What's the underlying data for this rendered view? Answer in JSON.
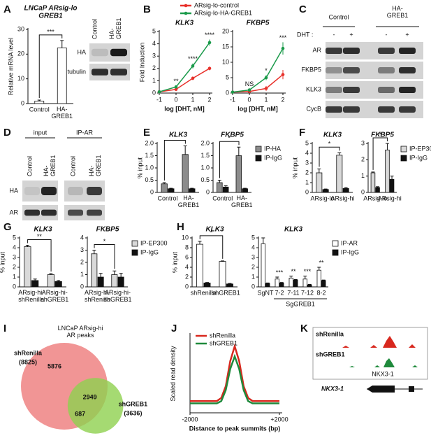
{
  "panel_letters": [
    "A",
    "B",
    "C",
    "D",
    "E",
    "F",
    "G",
    "H",
    "I",
    "J",
    "K"
  ],
  "chart_data": [
    {
      "type": "bar",
      "title": "LNCaP ARsig-lo",
      "subtitle": "GREB1",
      "ylabel": "Relative mRNA level",
      "categories": [
        "Control",
        "HA-\nGREB1"
      ],
      "values": [
        1,
        22.5
      ],
      "errors": [
        0.4,
        3
      ],
      "color": "#ffffff",
      "ylim": [
        0,
        30
      ],
      "yticks": [
        0,
        10,
        20,
        30
      ],
      "annotation": "***"
    },
    {
      "type": "line",
      "title": "KLK3",
      "xlabel": "log [DHT, nM]",
      "ylabel": "Fold Induction",
      "legend": "top",
      "x": [
        -1,
        0,
        1,
        2
      ],
      "xlim": [
        -1,
        2
      ],
      "xticks": [
        -1,
        0,
        1,
        2
      ],
      "ylim": [
        0,
        5
      ],
      "yticks": [
        0,
        1,
        2,
        3,
        4,
        5
      ],
      "series": [
        {
          "name": "ARsig-lo-control",
          "color": "#e8302a",
          "values": [
            0.1,
            0.3,
            1.2,
            2.0
          ],
          "errors": [
            0.05,
            0.1,
            0.15,
            0.15
          ]
        },
        {
          "name": "ARsig-lo-HA-GREB1",
          "color": "#1a9a4a",
          "values": [
            0.1,
            0.5,
            2.2,
            4.1
          ],
          "errors": [
            0.05,
            0.1,
            0.2,
            0.25
          ]
        }
      ],
      "annotations": [
        null,
        "**",
        "****",
        "****"
      ]
    },
    {
      "type": "line",
      "title": "FKBP5",
      "xlabel": "log [DHT, nM]",
      "x": [
        -1,
        0,
        1,
        2
      ],
      "xlim": [
        -1,
        2
      ],
      "xticks": [
        -1,
        0,
        1,
        2
      ],
      "ylim": [
        0,
        20
      ],
      "yticks": [
        0,
        5,
        10,
        15,
        20
      ],
      "series": [
        {
          "color": "#e8302a",
          "values": [
            0.3,
            0.5,
            1.5,
            6
          ],
          "errors": [
            0.2,
            0.3,
            0.8,
            1.5
          ]
        },
        {
          "color": "#1a9a4a",
          "values": [
            0.3,
            1,
            5,
            14.5
          ],
          "errors": [
            0.2,
            0.4,
            0.8,
            2
          ]
        }
      ],
      "annotations": [
        null,
        "NS",
        "*",
        "***"
      ]
    },
    {
      "type": "bar",
      "title": "KLK3",
      "ylabel": "% input",
      "categories": [
        "Control",
        "HA-\nGREB1"
      ],
      "ylim": [
        0,
        2
      ],
      "yticks": [
        0,
        0.5,
        {
          "value": 1,
          "label": "1.0"
        },
        1.5,
        {
          "value": 2,
          "label": "2.0"
        }
      ],
      "series": [
        {
          "color": "#8c8c8c",
          "values": [
            0.35,
            1.55
          ],
          "errors": [
            0.05,
            0.35
          ]
        },
        {
          "color": "#111111",
          "values": [
            0.15,
            0.15
          ],
          "errors": [
            0.02,
            0.02
          ]
        }
      ],
      "annotation": "*"
    },
    {
      "type": "bar",
      "title": "FKBP5",
      "legend": "right",
      "categories": [
        "Control",
        "HA-\nGREB1"
      ],
      "ylim": [
        0,
        2
      ],
      "yticks": [
        0,
        0.5,
        {
          "value": 1,
          "label": "1.0"
        },
        1.5,
        {
          "value": 2,
          "label": "2.0"
        }
      ],
      "series": [
        {
          "name": "IP-HA",
          "color": "#8c8c8c",
          "values": [
            0.4,
            1.5
          ],
          "errors": [
            0.1,
            0.35
          ]
        },
        {
          "name": "IP-IgG",
          "color": "#111111",
          "values": [
            0.22,
            0.15
          ],
          "errors": [
            0.05,
            0.02
          ]
        }
      ],
      "annotation": "*"
    },
    {
      "type": "bar",
      "title": "KLK3",
      "ylabel": "% input",
      "categories": [
        "ARsig-lo",
        "ARsig-hi"
      ],
      "ylim": [
        0,
        5
      ],
      "yticks": [
        0,
        1,
        2,
        3,
        4,
        5
      ],
      "series": [
        {
          "color": "#d9d9d9",
          "values": [
            2.0,
            3.8
          ],
          "errors": [
            0.4,
            0.25
          ]
        },
        {
          "color": "#111111",
          "values": [
            0.3,
            0.4
          ],
          "errors": [
            0.05,
            0.1
          ]
        }
      ],
      "annotation": "*"
    },
    {
      "type": "bar",
      "title": "FKBP5",
      "legend": "right",
      "categories": [
        "ARsig-lo",
        "ARsig-hi"
      ],
      "ylim": [
        0,
        3
      ],
      "yticks": [
        0,
        1,
        2,
        3
      ],
      "series": [
        {
          "name": "IP-EP300",
          "color": "#d9d9d9",
          "values": [
            1.2,
            2.6
          ],
          "errors": [
            0.05,
            0.4
          ]
        },
        {
          "name": "IP-IgG",
          "color": "#111111",
          "values": [
            0.3,
            0.8
          ],
          "errors": [
            0.05,
            0.2
          ]
        }
      ],
      "annotation": "*"
    },
    {
      "type": "bar",
      "title": "KLK3",
      "ylabel": "% input",
      "categories": [
        "ARsig-hi-\nshRenilla",
        "ARsig-hi-\nshGREB1"
      ],
      "ylim": [
        0,
        5
      ],
      "yticks": [
        0,
        1,
        2,
        3,
        4,
        5
      ],
      "series": [
        {
          "color": "#d9d9d9",
          "values": [
            4.1,
            1.25
          ],
          "errors": [
            0.15,
            0.1
          ]
        },
        {
          "color": "#111111",
          "values": [
            0.65,
            0.55
          ],
          "errors": [
            0.15,
            0.1
          ]
        }
      ],
      "annotation": "**"
    },
    {
      "type": "bar",
      "title": "FKBP5",
      "legend": "right",
      "categories": [
        "ARsig-hi-\nshRenilla",
        "ARsig-hi-\nshGREB1"
      ],
      "ylim": [
        0,
        4
      ],
      "yticks": [
        0,
        1,
        2,
        3,
        4
      ],
      "series": [
        {
          "name": "IP-EP300",
          "color": "#d9d9d9",
          "values": [
            2.7,
            1.0
          ],
          "errors": [
            0.3,
            0.3
          ]
        },
        {
          "name": "IP-IgG",
          "color": "#111111",
          "values": [
            0.8,
            0.8
          ],
          "errors": [
            0.3,
            0.3
          ]
        }
      ],
      "annotation": "*"
    },
    {
      "type": "bar",
      "title": "KLK3",
      "ylabel": "% input",
      "categories": [
        "shRenilla",
        "shGREB1"
      ],
      "ylim": [
        0,
        10
      ],
      "yticks": [
        0,
        2,
        4,
        6,
        8,
        10
      ],
      "series": [
        {
          "color": "#ffffff",
          "values": [
            8.7,
            5.2
          ],
          "errors": [
            0.6,
            0.1
          ]
        },
        {
          "color": "#111111",
          "values": [
            0.8,
            0.6
          ],
          "errors": [
            0.1,
            0.1
          ]
        }
      ],
      "annotation": "*"
    },
    {
      "type": "bar",
      "title": "KLK3",
      "legend": "right",
      "categories": [
        "SgNT",
        "7-2",
        "7-11",
        "7-12",
        "8-2"
      ],
      "group_label": "SgGREB1",
      "ylim": [
        0,
        5
      ],
      "yticks": [
        0,
        1,
        2,
        3,
        4,
        5
      ],
      "series": [
        {
          "name": "IP-AR",
          "color": "#ffffff",
          "values": [
            4.4,
            0.8,
            0.9,
            0.8,
            1.7
          ],
          "errors": [
            0.6,
            0.2,
            0.2,
            0.3,
            0.3
          ]
        },
        {
          "name": "IP-IgG",
          "color": "#111111",
          "values": [
            0.35,
            0.4,
            0.7,
            0.2,
            0.65
          ],
          "errors": [
            0.05,
            0.05,
            0.05,
            0.05,
            0.05
          ]
        }
      ],
      "annotations": [
        null,
        "***",
        "**",
        "***",
        "**"
      ]
    },
    {
      "type": "venn",
      "title": "LNCaP ARsig-hi\nAR peaks",
      "sets": [
        "shRenilla",
        "shGREB1"
      ],
      "colors": [
        "#f08a8a",
        "#8fd14f"
      ],
      "totals": [
        8825,
        3636
      ],
      "total_labels": [
        "(8825)",
        "(3636)"
      ],
      "only": [
        5876,
        687
      ],
      "both": 2949
    },
    {
      "type": "line",
      "xlabel": "Distance to peak summits (bp)",
      "ylabel": "Scaled read density",
      "legend": "upper left",
      "x": [
        -2000,
        -1800,
        -1600,
        -1400,
        -1200,
        -1000,
        -800,
        -600,
        -400,
        -200,
        0,
        200,
        400,
        600,
        800,
        1000,
        1200,
        1400,
        1600,
        1800,
        2000
      ],
      "xlim": [
        -2000,
        2000
      ],
      "xticks": [
        -2000,
        {
          "value": 2000,
          "label": "+2000"
        }
      ],
      "ylim": [
        0,
        1
      ],
      "series": [
        {
          "name": "shRenilla",
          "color": "#d8281e",
          "values": [
            0.15,
            0.15,
            0.15,
            0.15,
            0.15,
            0.15,
            0.15,
            0.19,
            0.34,
            0.66,
            0.85,
            0.66,
            0.34,
            0.19,
            0.15,
            0.15,
            0.15,
            0.15,
            0.15,
            0.15,
            0.15
          ]
        },
        {
          "name": "shGREB1",
          "color": "#1f8a3c",
          "values": [
            0.12,
            0.12,
            0.12,
            0.12,
            0.12,
            0.12,
            0.12,
            0.15,
            0.29,
            0.56,
            0.72,
            0.56,
            0.29,
            0.15,
            0.12,
            0.12,
            0.12,
            0.12,
            0.12,
            0.12,
            0.12
          ]
        }
      ]
    }
  ],
  "blots": [
    {
      "columns": [
        "Control",
        "HA-\nGREB1"
      ],
      "rows": [
        "HA",
        "tubulin"
      ]
    },
    {
      "groups": [
        "Control",
        "HA-\nGREB1"
      ],
      "lane_label": "DHT :",
      "lanes": [
        "-",
        "+",
        "-",
        "+"
      ],
      "rows": [
        "AR",
        "FKBP5",
        "KLK3",
        "CycB"
      ]
    },
    {
      "groups": [
        "input",
        "IP-AR"
      ],
      "columns": [
        "Control",
        "HA-\nGREB1",
        "Control",
        "HA-\nGREB1"
      ],
      "rows": [
        "HA",
        "AR"
      ]
    }
  ],
  "track": {
    "samples": [
      "shRenilla",
      "shGREB1"
    ],
    "gene_label": "NKX3-1",
    "gene": "NKX3-1"
  }
}
